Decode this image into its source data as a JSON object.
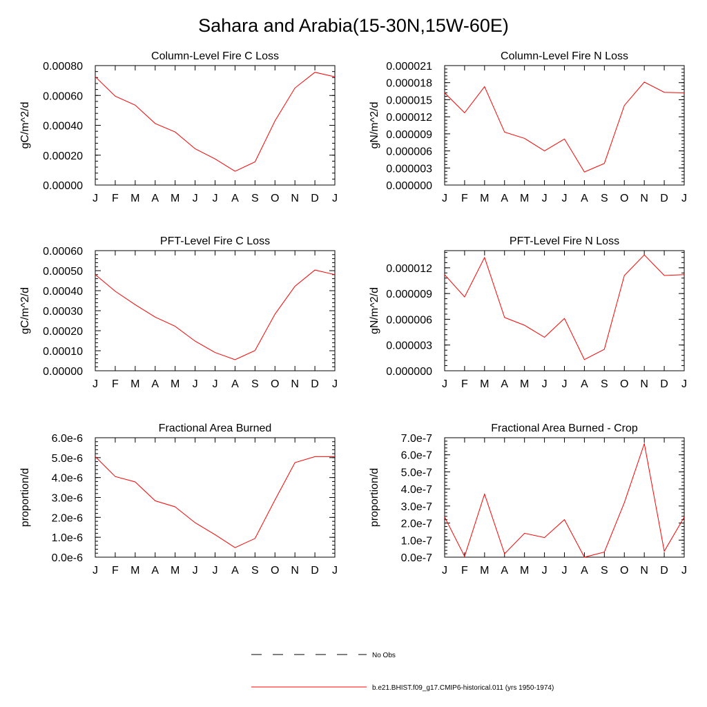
{
  "page": {
    "title": "Sahara and Arabia(15-30N,15W-60E)"
  },
  "legend": {
    "entries": [
      {
        "label": "No Obs",
        "color": "#000000",
        "style": "dashed"
      },
      {
        "label": "b.e21.BHIST.f09_g17.CMIP6-historical.011 (yrs 1950-1974)",
        "color": "#ff0000",
        "style": "solid"
      }
    ]
  },
  "chart_data": [
    {
      "type": "line",
      "title": "Column-Level Fire C Loss",
      "ylabel": "gC/m^2/d",
      "categories": [
        "J",
        "F",
        "M",
        "A",
        "M",
        "J",
        "J",
        "A",
        "S",
        "O",
        "N",
        "D",
        "J"
      ],
      "ylim": [
        0,
        0.0008
      ],
      "yticks": [
        0,
        0.0002,
        0.0004,
        0.0006,
        0.0008
      ],
      "ytick_labels": [
        "0.00000",
        "0.00020",
        "0.00040",
        "0.00060",
        "0.00080"
      ],
      "series": [
        {
          "name": "b.e21.BHIST.f09_g17.CMIP6-historical.011 (yrs 1950-1974)",
          "color": "#ff0000",
          "values": [
            0.000725,
            0.000595,
            0.000535,
            0.000412,
            0.000355,
            0.000243,
            0.000175,
            9.2e-05,
            0.000155,
            0.00043,
            0.00065,
            0.000755,
            0.000725
          ]
        }
      ]
    },
    {
      "type": "line",
      "title": "Column-Level Fire N Loss",
      "ylabel": "gN/m^2/d",
      "categories": [
        "J",
        "F",
        "M",
        "A",
        "M",
        "J",
        "J",
        "A",
        "S",
        "O",
        "N",
        "D",
        "J"
      ],
      "ylim": [
        0,
        2.1e-05
      ],
      "yticks": [
        0,
        3e-06,
        6e-06,
        9e-06,
        1.2e-05,
        1.5e-05,
        1.8e-05,
        2.1e-05
      ],
      "ytick_labels": [
        "0.000000",
        "0.000003",
        "0.000006",
        "0.000009",
        "0.000012",
        "0.000015",
        "0.000018",
        "0.000021"
      ],
      "series": [
        {
          "name": "b.e21.BHIST.f09_g17.CMIP6-historical.011 (yrs 1950-1974)",
          "color": "#ff0000",
          "values": [
            1.62e-05,
            1.27e-05,
            1.73e-05,
            9.3e-06,
            8.2e-06,
            6e-06,
            8.1e-06,
            2.3e-06,
            3.8e-06,
            1.4e-05,
            1.81e-05,
            1.63e-05,
            1.62e-05
          ]
        }
      ]
    },
    {
      "type": "line",
      "title": "PFT-Level Fire C Loss",
      "ylabel": "gC/m^2/d",
      "categories": [
        "J",
        "F",
        "M",
        "A",
        "M",
        "J",
        "J",
        "A",
        "S",
        "O",
        "N",
        "D",
        "J"
      ],
      "ylim": [
        0,
        0.0006
      ],
      "yticks": [
        0,
        0.0001,
        0.0002,
        0.0003,
        0.0004,
        0.0005,
        0.0006
      ],
      "ytick_labels": [
        "0.00000",
        "0.00010",
        "0.00020",
        "0.00030",
        "0.00040",
        "0.00050",
        "0.00060"
      ],
      "series": [
        {
          "name": "b.e21.BHIST.f09_g17.CMIP6-historical.011 (yrs 1950-1974)",
          "color": "#ff0000",
          "values": [
            0.00048,
            0.000397,
            0.00033,
            0.000268,
            0.000222,
            0.000148,
            9.1e-05,
            5.5e-05,
            0.000101,
            0.000283,
            0.000422,
            0.000503,
            0.00048
          ]
        }
      ]
    },
    {
      "type": "line",
      "title": "PFT-Level Fire N Loss",
      "ylabel": "gN/m^2/d",
      "categories": [
        "J",
        "F",
        "M",
        "A",
        "M",
        "J",
        "J",
        "A",
        "S",
        "O",
        "N",
        "D",
        "J"
      ],
      "ylim": [
        0,
        1.4e-05
      ],
      "yticks": [
        0,
        3e-06,
        6e-06,
        9e-06,
        1.2e-05
      ],
      "ytick_labels": [
        "0.000000",
        "0.000003",
        "0.000006",
        "0.000009",
        "0.000012"
      ],
      "series": [
        {
          "name": "b.e21.BHIST.f09_g17.CMIP6-historical.011 (yrs 1950-1974)",
          "color": "#ff0000",
          "values": [
            1.12e-05,
            8.6e-06,
            1.32e-05,
            6.2e-06,
            5.3e-06,
            3.9e-06,
            6.1e-06,
            1.3e-06,
            2.5e-06,
            1.11e-05,
            1.35e-05,
            1.11e-05,
            1.12e-05
          ]
        }
      ]
    },
    {
      "type": "line",
      "title": "Fractional Area Burned",
      "ylabel": "proportion/d",
      "categories": [
        "J",
        "F",
        "M",
        "A",
        "M",
        "J",
        "J",
        "A",
        "S",
        "O",
        "N",
        "D",
        "J"
      ],
      "ylim": [
        0,
        6e-06
      ],
      "yticks": [
        0,
        1e-06,
        2e-06,
        3e-06,
        4e-06,
        5e-06,
        6e-06
      ],
      "ytick_labels": [
        "0.0e-6",
        "1.0e-6",
        "2.0e-6",
        "3.0e-6",
        "4.0e-6",
        "5.0e-6",
        "6.0e-6"
      ],
      "series": [
        {
          "name": "b.e21.BHIST.f09_g17.CMIP6-historical.011 (yrs 1950-1974)",
          "color": "#ff0000",
          "values": [
            5.05e-06,
            4.05e-06,
            3.78e-06,
            2.83e-06,
            2.53e-06,
            1.73e-06,
            1.13e-06,
            4.8e-07,
            9.4e-07,
            2.88e-06,
            4.75e-06,
            5.05e-06,
            5.05e-06
          ]
        }
      ]
    },
    {
      "type": "line",
      "title": "Fractional Area Burned - Crop",
      "ylabel": "proportion/d",
      "categories": [
        "J",
        "F",
        "M",
        "A",
        "M",
        "J",
        "J",
        "A",
        "S",
        "O",
        "N",
        "D",
        "J"
      ],
      "ylim": [
        0,
        7e-07
      ],
      "yticks": [
        0,
        1e-07,
        2e-07,
        3e-07,
        4e-07,
        5e-07,
        6e-07,
        7e-07
      ],
      "ytick_labels": [
        "0.0e-7",
        "1.0e-7",
        "2.0e-7",
        "3.0e-7",
        "4.0e-7",
        "5.0e-7",
        "6.0e-7",
        "7.0e-7"
      ],
      "series": [
        {
          "name": "b.e21.BHIST.f09_g17.CMIP6-historical.011 (yrs 1950-1974)",
          "color": "#ff0000",
          "values": [
            2.35e-07,
            5e-09,
            3.7e-07,
            2e-08,
            1.4e-07,
            1.15e-07,
            2.2e-07,
            0.0,
            3e-08,
            3.2e-07,
            6.65e-07,
            3.5e-08,
            2.35e-07
          ]
        }
      ]
    }
  ]
}
